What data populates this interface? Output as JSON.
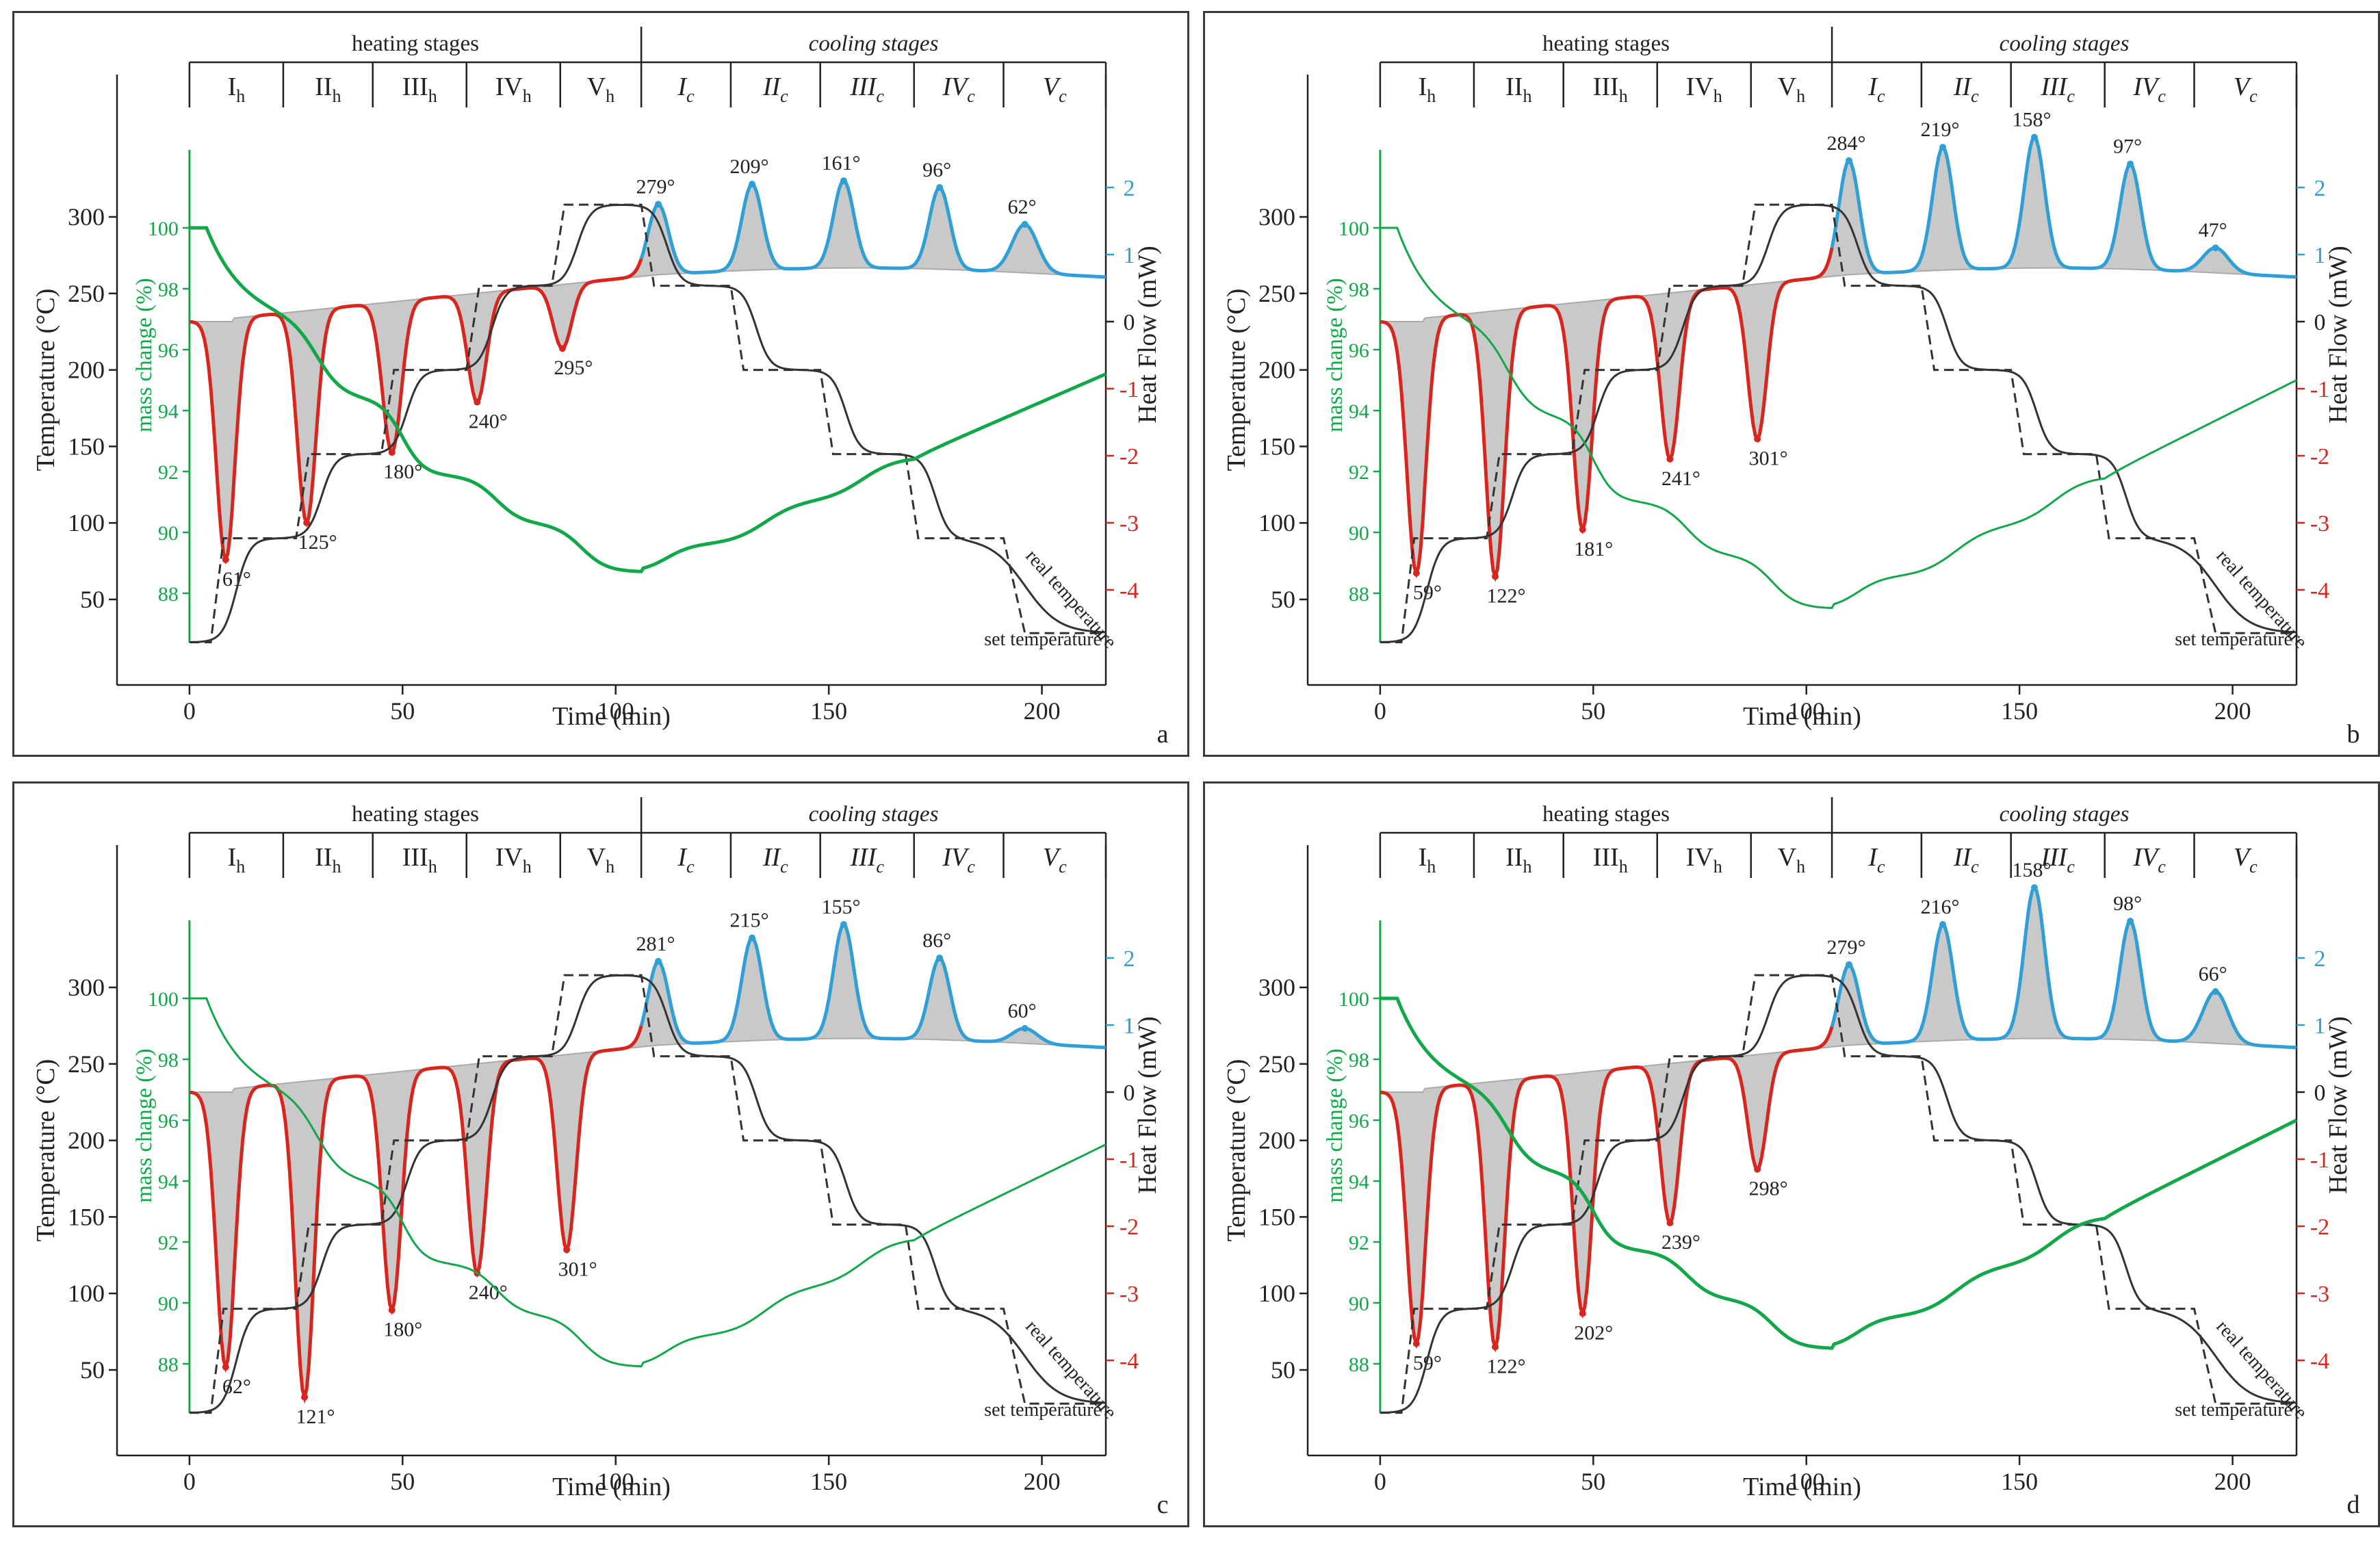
{
  "colors": {
    "axis": "#222222",
    "green": "#12a84a",
    "red": "#d7261e",
    "blue": "#2f9fd6",
    "fill": "#c9c9c9",
    "fill_edge": "#aaaaaa",
    "temp": "#333333"
  },
  "chart_data": [
    {
      "type": "line",
      "panel_label": "a",
      "xlabel": "Time (min)",
      "ylabel_left": "Temperature (°C)",
      "ylabel_mass": "mass change (%)",
      "ylabel_right": "Heat Flow (mW)",
      "xlim": [
        -17,
        215
      ],
      "x_ticks": [
        0,
        50,
        100,
        150,
        200
      ],
      "temp_ticks": [
        50,
        100,
        150,
        200,
        250,
        300
      ],
      "mass_ticks": [
        88,
        90,
        92,
        94,
        96,
        98,
        100
      ],
      "hf_ticks": [
        -4,
        -3,
        -2,
        -1,
        0,
        1,
        2
      ],
      "stage_groups": [
        "heating stages",
        "cooling stages"
      ],
      "heating_stages": [
        {
          "base": "I",
          "sub": "h"
        },
        {
          "base": "II",
          "sub": "h"
        },
        {
          "base": "III",
          "sub": "h"
        },
        {
          "base": "IV",
          "sub": "h"
        },
        {
          "base": "V",
          "sub": "h"
        }
      ],
      "cooling_stages": [
        {
          "base": "I",
          "sub": "c"
        },
        {
          "base": "II",
          "sub": "c"
        },
        {
          "base": "III",
          "sub": "c"
        },
        {
          "base": "IV",
          "sub": "c"
        },
        {
          "base": "V",
          "sub": "c"
        }
      ],
      "set_temperature_label": "set temperature",
      "real_temperature_label": "real temperature",
      "mass_final": 95.2,
      "mass_min": 88.7,
      "heat_endo": [
        {
          "x": 8.5,
          "depth": -3.55,
          "label": "61"
        },
        {
          "x": 27.5,
          "depth": -3.0,
          "label": "125"
        },
        {
          "x": 47.5,
          "depth": -1.95,
          "label": "180"
        },
        {
          "x": 67.5,
          "depth": -1.2,
          "label": "240"
        },
        {
          "x": 87.5,
          "depth": -0.4,
          "label": "295"
        }
      ],
      "heat_exo": [
        {
          "x": 110,
          "height": 1.75,
          "label": "279"
        },
        {
          "x": 132,
          "height": 2.05,
          "label": "209"
        },
        {
          "x": 153.5,
          "height": 2.1,
          "label": "161"
        },
        {
          "x": 176,
          "height": 2.0,
          "label": "96"
        },
        {
          "x": 196,
          "height": 1.45,
          "label": "62"
        }
      ]
    },
    {
      "type": "line",
      "panel_label": "b",
      "xlabel": "Time (min)",
      "ylabel_left": "Temperature (°C)",
      "ylabel_mass": "mass change (%)",
      "ylabel_right": "Heat Flow (mW)",
      "xlim": [
        -17,
        215
      ],
      "x_ticks": [
        0,
        50,
        100,
        150,
        200
      ],
      "temp_ticks": [
        50,
        100,
        150,
        200,
        250,
        300
      ],
      "mass_ticks": [
        88,
        90,
        92,
        94,
        96,
        98,
        100
      ],
      "hf_ticks": [
        -4,
        -3,
        -2,
        -1,
        0,
        1,
        2
      ],
      "stage_groups": [
        "heating stages",
        "cooling stages"
      ],
      "heating_stages": [
        {
          "base": "I",
          "sub": "h"
        },
        {
          "base": "II",
          "sub": "h"
        },
        {
          "base": "III",
          "sub": "h"
        },
        {
          "base": "IV",
          "sub": "h"
        },
        {
          "base": "V",
          "sub": "h"
        }
      ],
      "cooling_stages": [
        {
          "base": "I",
          "sub": "c"
        },
        {
          "base": "II",
          "sub": "c"
        },
        {
          "base": "III",
          "sub": "c"
        },
        {
          "base": "IV",
          "sub": "c"
        },
        {
          "base": "V",
          "sub": "c"
        }
      ],
      "set_temperature_label": "set temperature",
      "real_temperature_label": "real temperature",
      "mass_final": 95.0,
      "mass_min": 87.5,
      "heat_endo": [
        {
          "x": 8.5,
          "depth": -3.75,
          "label": "59"
        },
        {
          "x": 27,
          "depth": -3.8,
          "label": "122"
        },
        {
          "x": 47.5,
          "depth": -3.1,
          "label": "181"
        },
        {
          "x": 68,
          "depth": -2.05,
          "label": "241"
        },
        {
          "x": 88.5,
          "depth": -1.75,
          "label": "301"
        }
      ],
      "heat_exo": [
        {
          "x": 110,
          "height": 2.4,
          "label": "284"
        },
        {
          "x": 132,
          "height": 2.6,
          "label": "219"
        },
        {
          "x": 153.5,
          "height": 2.75,
          "label": "158"
        },
        {
          "x": 176,
          "height": 2.35,
          "label": "97"
        },
        {
          "x": 196,
          "height": 1.1,
          "label": "47"
        }
      ]
    },
    {
      "type": "line",
      "panel_label": "c",
      "xlabel": "Time (min)",
      "ylabel_left": "Temperature (°C)",
      "ylabel_mass": "mass change (%)",
      "ylabel_right": "Heat Flow (mW)",
      "xlim": [
        -17,
        215
      ],
      "x_ticks": [
        0,
        50,
        100,
        150,
        200
      ],
      "temp_ticks": [
        50,
        100,
        150,
        200,
        250,
        300
      ],
      "mass_ticks": [
        88,
        90,
        92,
        94,
        96,
        98,
        100
      ],
      "hf_ticks": [
        -4,
        -3,
        -2,
        -1,
        0,
        1,
        2
      ],
      "stage_groups": [
        "heating stages",
        "cooling stages"
      ],
      "heating_stages": [
        {
          "base": "I",
          "sub": "h"
        },
        {
          "base": "II",
          "sub": "h"
        },
        {
          "base": "III",
          "sub": "h"
        },
        {
          "base": "IV",
          "sub": "h"
        },
        {
          "base": "V",
          "sub": "h"
        }
      ],
      "cooling_stages": [
        {
          "base": "I",
          "sub": "c"
        },
        {
          "base": "II",
          "sub": "c"
        },
        {
          "base": "III",
          "sub": "c"
        },
        {
          "base": "IV",
          "sub": "c"
        },
        {
          "base": "V",
          "sub": "c"
        }
      ],
      "set_temperature_label": "set temperature",
      "real_temperature_label": "real temperature",
      "mass_final": 95.2,
      "mass_min": 87.9,
      "heat_endo": [
        {
          "x": 8.5,
          "depth": -4.1,
          "label": "62"
        },
        {
          "x": 27,
          "depth": -4.55,
          "label": "121"
        },
        {
          "x": 47.5,
          "depth": -3.25,
          "label": "180"
        },
        {
          "x": 67.5,
          "depth": -2.7,
          "label": "240"
        },
        {
          "x": 88.5,
          "depth": -2.35,
          "label": "301"
        }
      ],
      "heat_exo": [
        {
          "x": 110,
          "height": 1.95,
          "label": "281"
        },
        {
          "x": 132,
          "height": 2.3,
          "label": "215"
        },
        {
          "x": 153.5,
          "height": 2.5,
          "label": "155"
        },
        {
          "x": 176,
          "height": 2.0,
          "label": "86"
        },
        {
          "x": 196,
          "height": 0.95,
          "label": "60"
        }
      ]
    },
    {
      "type": "line",
      "panel_label": "d",
      "xlabel": "Time (min)",
      "ylabel_left": "Temperature (°C)",
      "ylabel_mass": "mass change (%)",
      "ylabel_right": "Heat Flow (mW)",
      "xlim": [
        -17,
        215
      ],
      "x_ticks": [
        0,
        50,
        100,
        150,
        200
      ],
      "temp_ticks": [
        50,
        100,
        150,
        200,
        250,
        300
      ],
      "mass_ticks": [
        88,
        90,
        92,
        94,
        96,
        98,
        100
      ],
      "hf_ticks": [
        -4,
        -3,
        -2,
        -1,
        0,
        1,
        2
      ],
      "stage_groups": [
        "heating stages",
        "cooling stages"
      ],
      "heating_stages": [
        {
          "base": "I",
          "sub": "h"
        },
        {
          "base": "II",
          "sub": "h"
        },
        {
          "base": "III",
          "sub": "h"
        },
        {
          "base": "IV",
          "sub": "h"
        },
        {
          "base": "V",
          "sub": "h"
        }
      ],
      "cooling_stages": [
        {
          "base": "I",
          "sub": "c"
        },
        {
          "base": "II",
          "sub": "c"
        },
        {
          "base": "III",
          "sub": "c"
        },
        {
          "base": "IV",
          "sub": "c"
        },
        {
          "base": "V",
          "sub": "c"
        }
      ],
      "set_temperature_label": "set temperature",
      "real_temperature_label": "real temperature",
      "mass_final": 96.0,
      "mass_min": 88.5,
      "heat_endo": [
        {
          "x": 8.5,
          "depth": -3.75,
          "label": "59"
        },
        {
          "x": 27,
          "depth": -3.8,
          "label": "122"
        },
        {
          "x": 47.5,
          "depth": -3.3,
          "label": "202"
        },
        {
          "x": 68,
          "depth": -1.95,
          "label": "239"
        },
        {
          "x": 88.5,
          "depth": -1.15,
          "label": "298"
        }
      ],
      "heat_exo": [
        {
          "x": 110,
          "height": 1.9,
          "label": "279"
        },
        {
          "x": 132,
          "height": 2.5,
          "label": "216"
        },
        {
          "x": 153.5,
          "height": 3.05,
          "label": "158"
        },
        {
          "x": 176,
          "height": 2.55,
          "label": "98"
        },
        {
          "x": 196,
          "height": 1.5,
          "label": "66"
        }
      ]
    }
  ]
}
